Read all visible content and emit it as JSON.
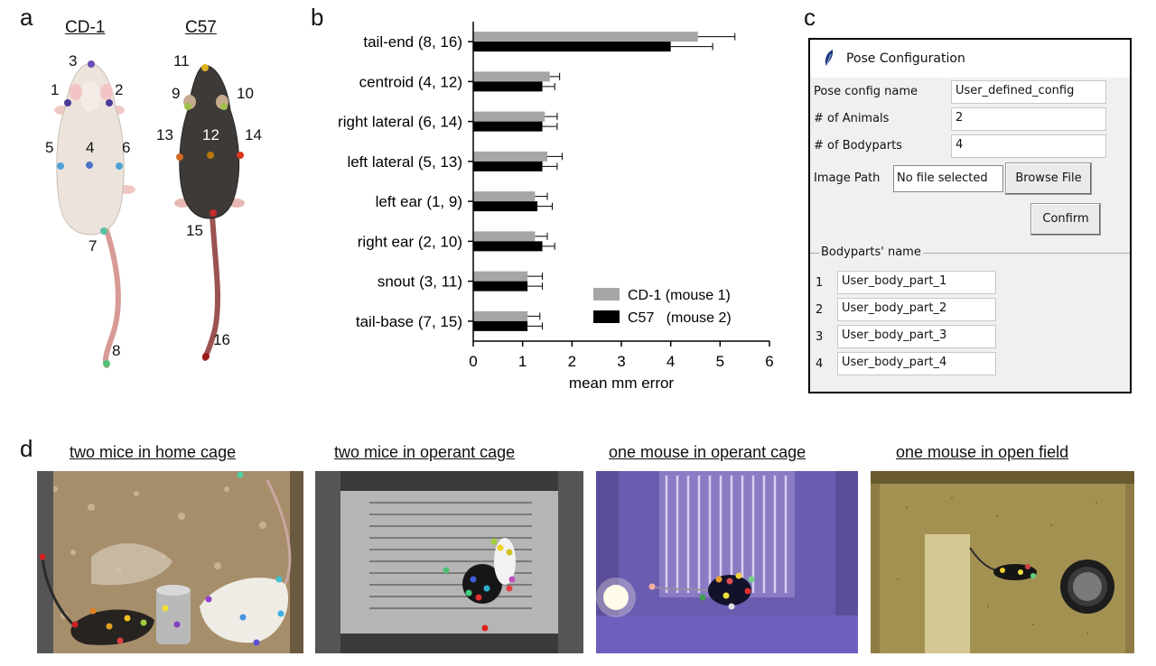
{
  "panels": {
    "a": "a",
    "b": "b",
    "c": "c",
    "d": "d"
  },
  "panel_a": {
    "mouse1_title": "CD-1",
    "mouse2_title": "C57",
    "mouse1_points": [
      "1",
      "2",
      "3",
      "4",
      "5",
      "6",
      "7",
      "8"
    ],
    "mouse2_points": [
      "9",
      "10",
      "11",
      "12",
      "13",
      "14",
      "15",
      "16"
    ]
  },
  "chart_data": {
    "type": "bar",
    "orientation": "horizontal",
    "categories": [
      "tail-end (8, 16)",
      "centroid (4, 12)",
      "right lateral (6, 14)",
      "left lateral (5, 13)",
      "left ear (1, 9)",
      "right ear (2, 10)",
      "snout (3, 11)",
      "tail-base (7, 15)"
    ],
    "series": [
      {
        "name": "CD-1 (mouse 1)",
        "color": "#a6a6a6",
        "values": [
          4.55,
          1.55,
          1.45,
          1.5,
          1.25,
          1.25,
          1.1,
          1.1
        ],
        "errors": [
          0.75,
          0.2,
          0.25,
          0.3,
          0.25,
          0.25,
          0.3,
          0.25
        ]
      },
      {
        "name": "C57   (mouse 2)",
        "color": "#000000",
        "values": [
          4.0,
          1.4,
          1.4,
          1.4,
          1.3,
          1.4,
          1.1,
          1.1
        ],
        "errors": [
          0.85,
          0.25,
          0.3,
          0.3,
          0.3,
          0.25,
          0.3,
          0.3
        ]
      }
    ],
    "xlabel": "mean  mm  error",
    "xticks": [
      0,
      1,
      2,
      3,
      4,
      5,
      6
    ],
    "xlim": [
      0,
      6
    ],
    "legend_position": "bottom-right"
  },
  "pose_window": {
    "title": "Pose Configuration",
    "config_name_label": "Pose config name",
    "config_name_value": "User_defined_config",
    "animals_label": "# of Animals",
    "animals_value": "2",
    "bodyparts_label": "# of Bodyparts",
    "bodyparts_value": "4",
    "image_path_label": "Image Path",
    "image_path_value": "No file selected",
    "browse_button": "Browse File",
    "confirm_button": "Confirm",
    "bodyparts_frame_title": "Bodyparts' name",
    "bodyparts": [
      {
        "index": "1",
        "name": "User_body_part_1"
      },
      {
        "index": "2",
        "name": "User_body_part_2"
      },
      {
        "index": "3",
        "name": "User_body_part_3"
      },
      {
        "index": "4",
        "name": "User_body_part_4"
      }
    ]
  },
  "panel_d": {
    "scene1_title": "two  mice  in home  cage",
    "scene2_title": "two  mice  in operant  cage",
    "scene3_title": "one  mouse  in operant  cage",
    "scene4_title": "one  mouse  in open  field"
  }
}
